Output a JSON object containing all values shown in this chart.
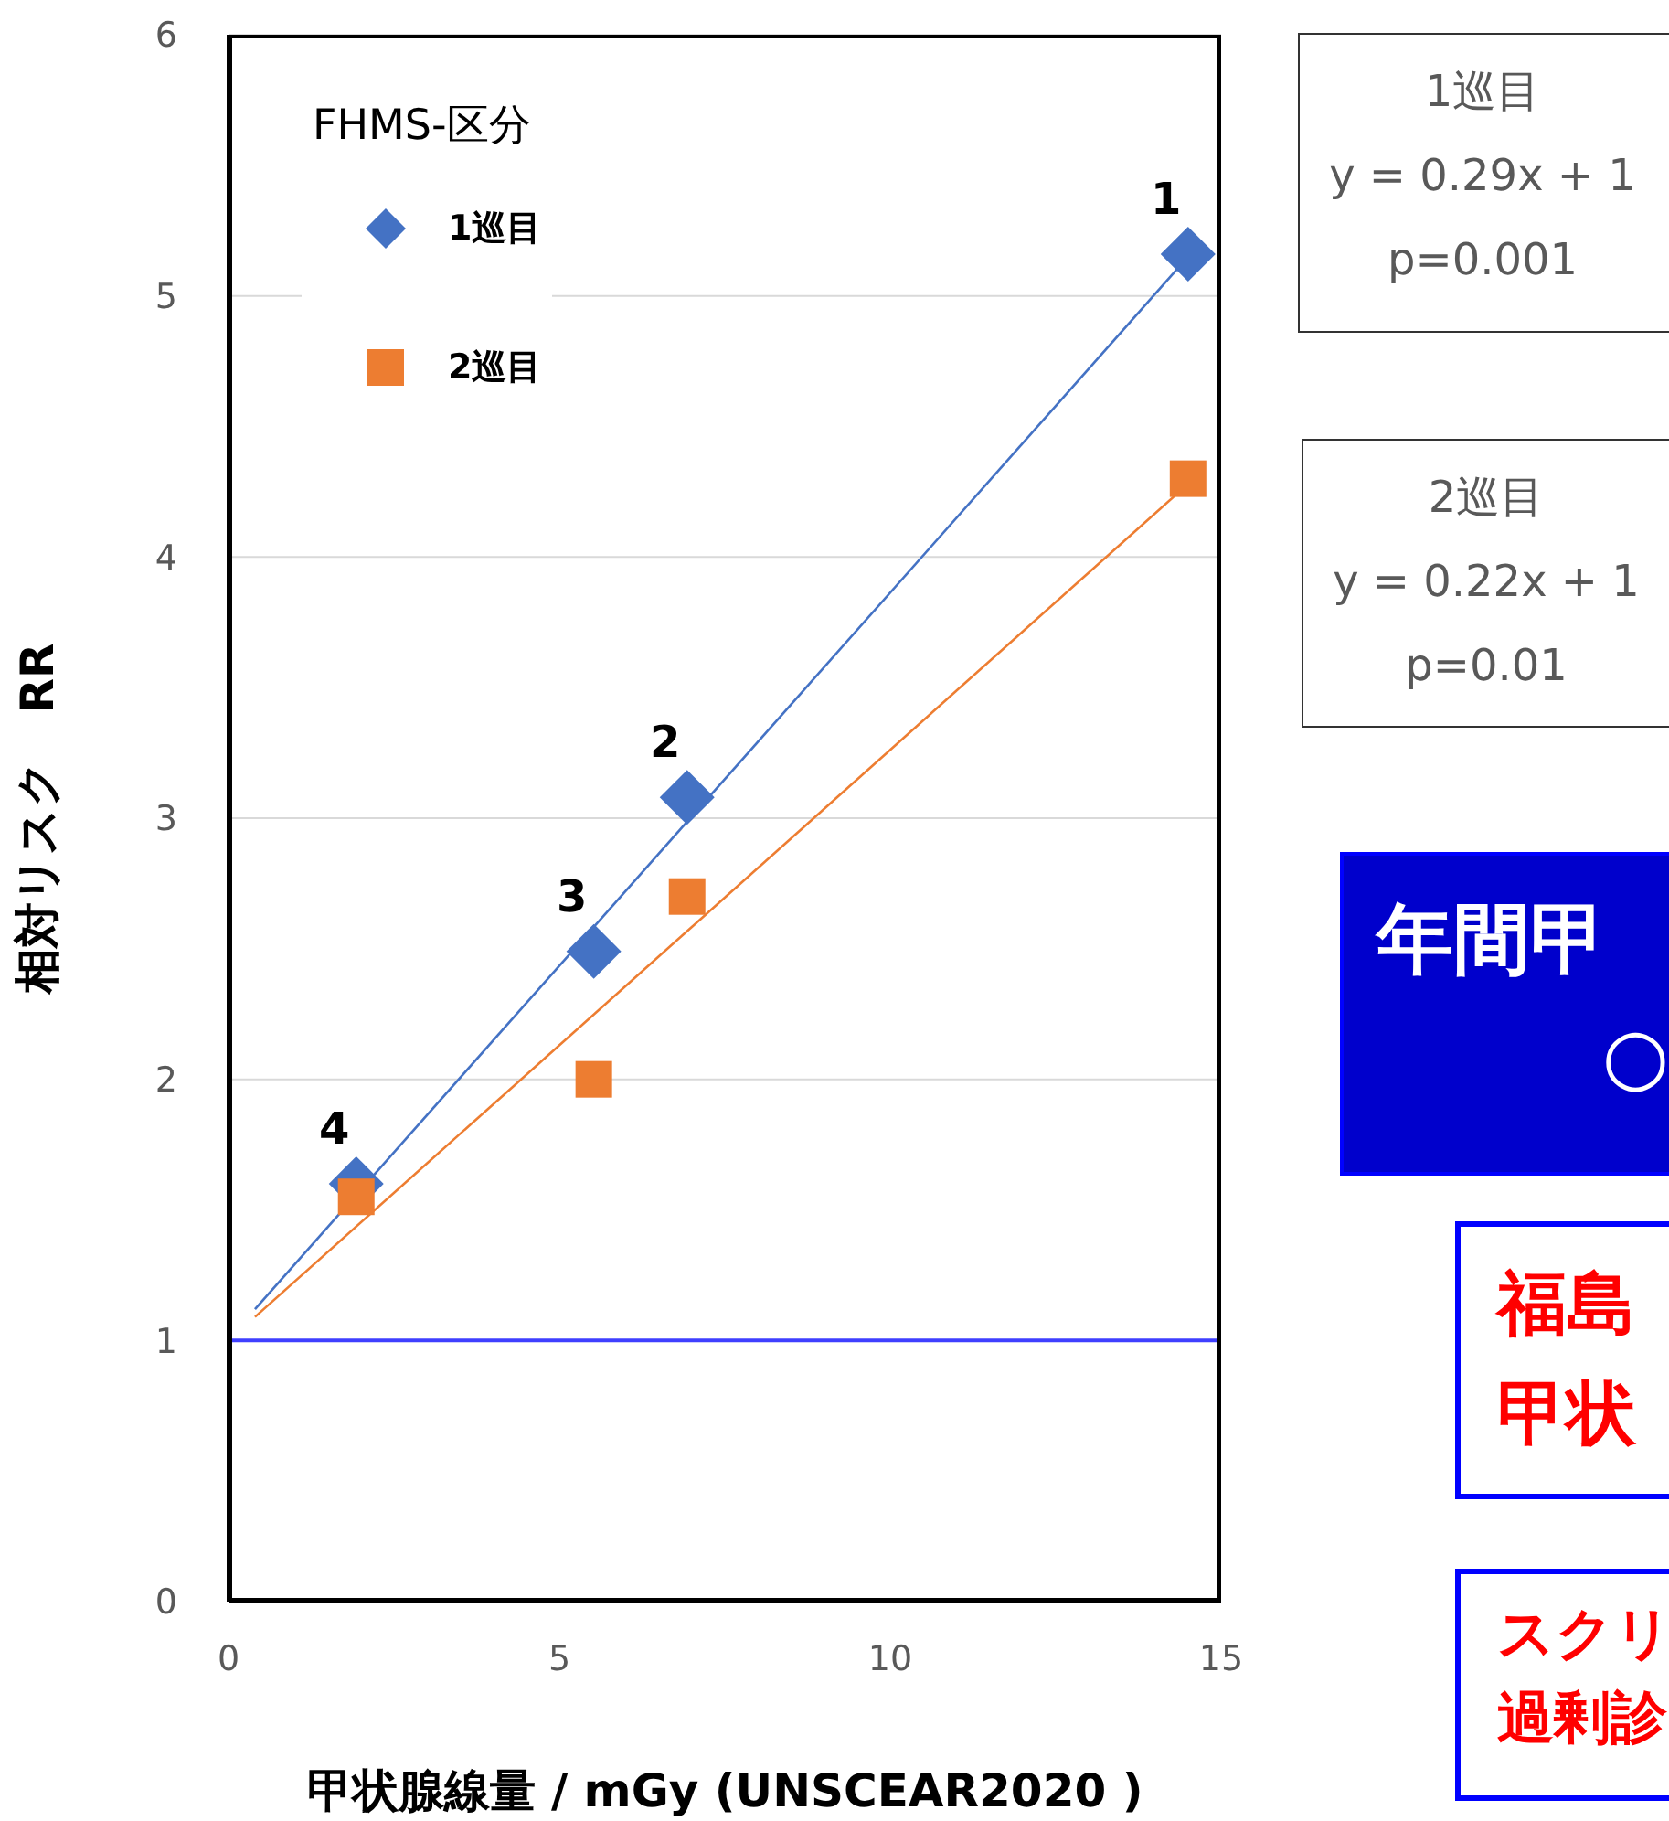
{
  "chart_data": {
    "type": "scatter",
    "xlabel": "甲状腺線量 / mGy (UNSCEAR2020 )",
    "ylabel": "相対リスク　RR",
    "legend_title": "FHMS-区分",
    "series": [
      {
        "name": "1巡目",
        "type": "scatter",
        "marker": "diamond",
        "color": "#4472c4",
        "x": [
          14.5,
          6.93,
          5.52,
          1.93
        ],
        "values": [
          5.16,
          3.08,
          2.49,
          1.6
        ]
      },
      {
        "name": "2巡目",
        "type": "scatter",
        "marker": "square",
        "color": "#ed7d31",
        "x": [
          14.5,
          6.93,
          5.52,
          1.93
        ],
        "values": [
          4.3,
          2.7,
          2.0,
          1.55
        ]
      },
      {
        "type": "line",
        "marker": "none",
        "color": "#4472c4",
        "x": [
          0.4,
          14.5
        ],
        "values": [
          1.12,
          5.15
        ]
      },
      {
        "type": "line",
        "marker": "none",
        "color": "#ed7d31",
        "x": [
          0.4,
          14.5
        ],
        "values": [
          1.09,
          4.28
        ]
      }
    ],
    "xlim": [
      0,
      15
    ],
    "xticks": [
      0,
      5,
      10,
      15
    ],
    "ylim": [
      0,
      6
    ],
    "yticks": [
      0,
      1,
      2,
      3,
      4,
      5,
      6
    ],
    "grid": "y",
    "legend": "top left",
    "ref_lines": [
      {
        "axis": "y",
        "value": 1,
        "color": "#3f3fff"
      }
    ],
    "annotations": [
      {
        "text": "1",
        "x": 14.5,
        "y": 5.16
      },
      {
        "text": "2",
        "x": 6.93,
        "y": 3.08
      },
      {
        "text": "3",
        "x": 5.52,
        "y": 2.49
      },
      {
        "text": "4",
        "x": 1.93,
        "y": 1.6
      },
      "1巡目\ny = 0.29x + 1\np=0.001",
      "2巡目\ny = 0.22x + 1\np=0.01",
      "年間甲○",
      "福島甲状",
      "スクリ過剰診"
    ]
  }
}
